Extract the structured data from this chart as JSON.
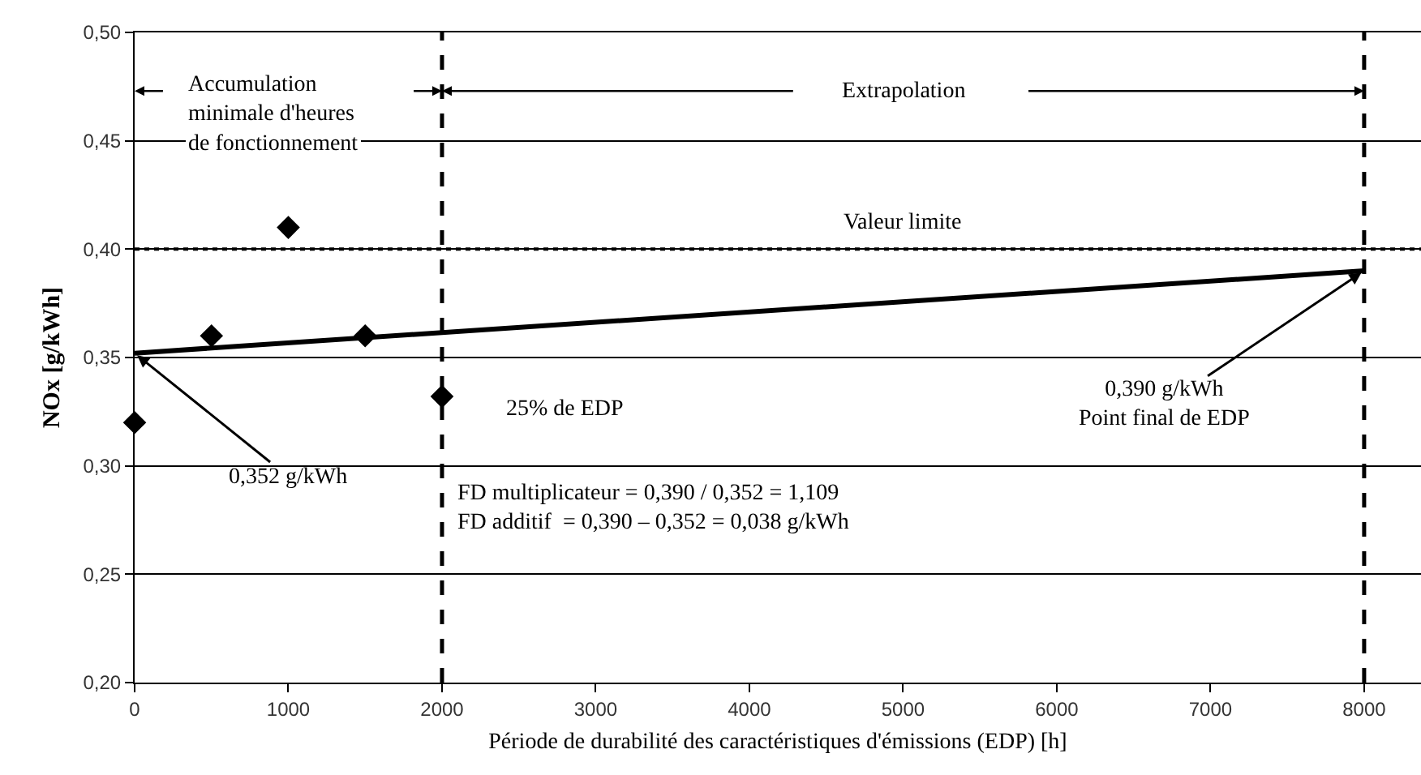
{
  "chart_data": {
    "type": "scatter",
    "xlabel": "Période de durabilité des caractéristiques d'émissions (EDP) [h]",
    "ylabel": "NOx [g/kWh]",
    "series": [
      {
        "color": "#000000",
        "marker": "diamond",
        "x": [
          0,
          500,
          1000,
          1500,
          2000
        ],
        "values": [
          0.32,
          0.36,
          0.41,
          0.36,
          0.332
        ]
      },
      {
        "type": "line",
        "color": "#000000",
        "line_style": "solid",
        "marker": "none",
        "x": [
          0,
          8000
        ],
        "values": [
          0.352,
          0.39
        ]
      }
    ],
    "xlim": [
      0,
      8370
    ],
    "ylim": [
      0.2,
      0.5
    ],
    "xticks": [
      0,
      1000,
      2000,
      3000,
      4000,
      5000,
      6000,
      7000,
      8000
    ],
    "yticks": [
      {
        "value": 0.2,
        "label": "0,20"
      },
      {
        "value": 0.25,
        "label": "0,25"
      },
      {
        "value": 0.3,
        "label": "0,30"
      },
      {
        "value": 0.35,
        "label": "0,35"
      },
      {
        "value": 0.4,
        "label": "0,40"
      },
      {
        "value": 0.45,
        "label": "0,45"
      },
      {
        "value": 0.5,
        "label": "0,50"
      }
    ],
    "grid": "y",
    "ref_lines": [
      {
        "axis": "y",
        "value": 0.4,
        "label": "Valeur limite",
        "color": "#000000",
        "line_style": "dotted"
      },
      {
        "axis": "x",
        "value": 2000,
        "label": "25% de EDP",
        "color": "#000000",
        "line_style": "dashed"
      },
      {
        "axis": "x",
        "value": 8000,
        "color": "#000000",
        "line_style": "dashed"
      }
    ],
    "annotations": [
      "Accumulation\nminimale d'heures\nde fonctionnement",
      "Extrapolation",
      {
        "text": "0,352 g/kWh",
        "x": 0,
        "y": 0.352
      },
      {
        "text": "0,390 g/kWh\nPoint final de EDP",
        "x": 8000,
        "y": 0.39
      },
      "FD multiplicateur = 0,390 / 0,352 = 1,109\nFD additif  = 0,390 – 0,352 = 0,038 g/kWh"
    ]
  }
}
